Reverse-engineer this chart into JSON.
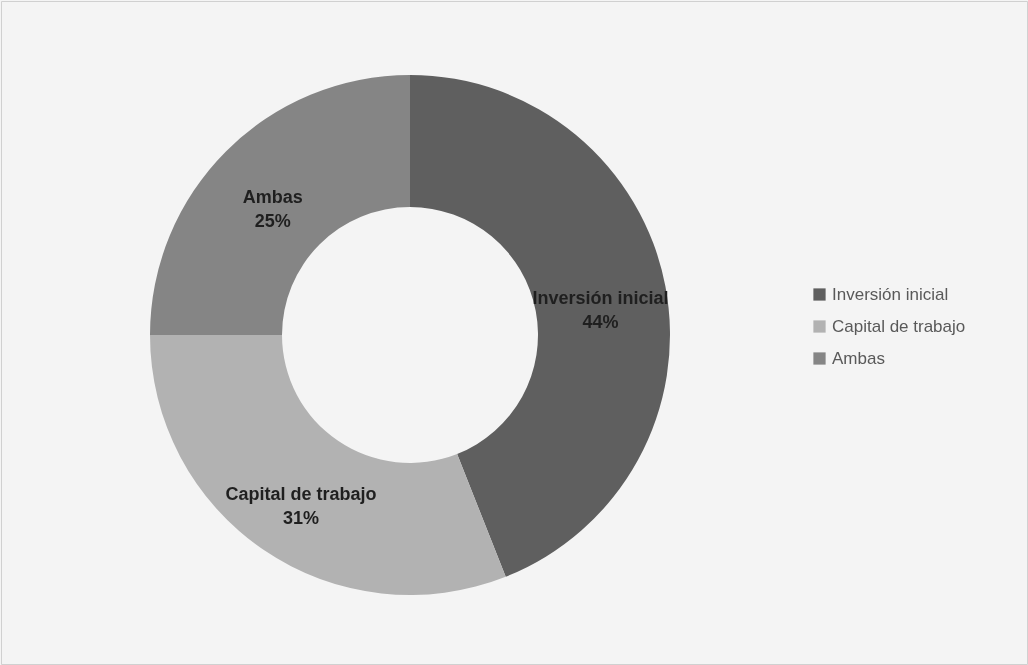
{
  "chart_data": {
    "type": "donut",
    "categories": [
      "Inversión inicial",
      "Capital de trabajo",
      "Ambas"
    ],
    "values": [
      44,
      31,
      25
    ],
    "colors": [
      "#5f5f5f",
      "#b2b2b2",
      "#858585"
    ],
    "value_labels": [
      "44%",
      "31%",
      "25%"
    ],
    "legend": "right"
  }
}
